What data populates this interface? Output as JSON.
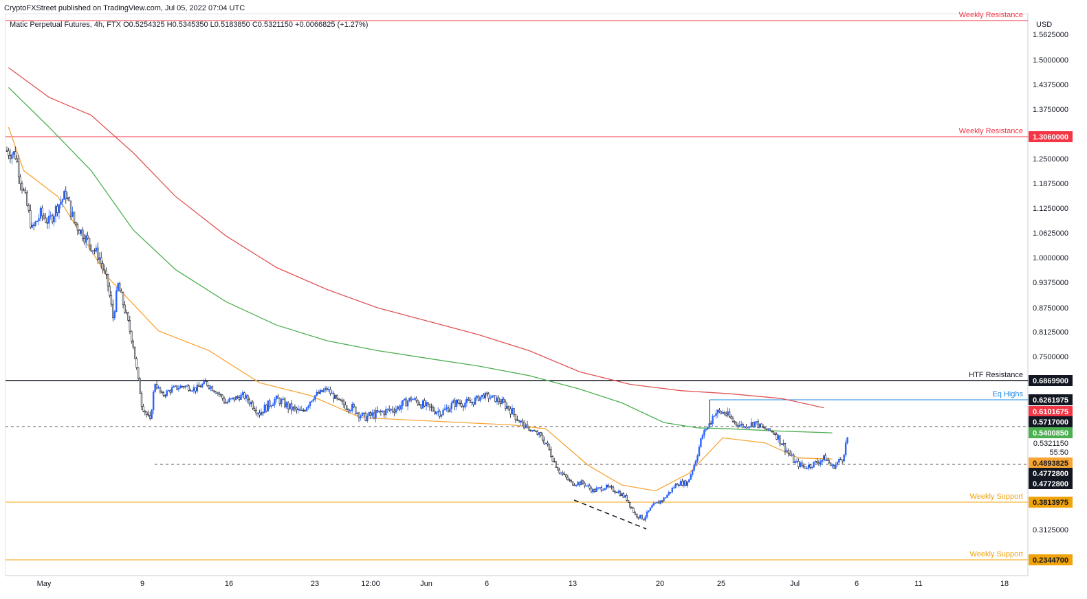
{
  "header": {
    "published": "CryptoFXStreet published on TradingView.com, Jul 05, 2022 07:04 UTC",
    "ohlc": "Matic Perpetual Futures, 4h, FTX  O0.5254325  H0.5345350  L0.5183850  C0.5321150  +0.0066825 (+1.27%)"
  },
  "colors": {
    "up": "#2962ff",
    "ema_fast": "#f7a534",
    "ema_mid": "#4caf50",
    "ema_slow": "#e15353",
    "resistance": "#f23645",
    "support": "#f0a30a",
    "htf": "#131722",
    "eq": "#1e88e5"
  },
  "chart_data": {
    "type": "candlestick",
    "currency": "USD",
    "y_ticks": [
      "1.5625000",
      "1.5000000",
      "1.4375000",
      "1.3750000",
      "1.2500000",
      "1.1875000",
      "1.1250000",
      "1.0625000",
      "1.0000000",
      "0.9375000",
      "0.8750000",
      "0.8125000",
      "0.7500000",
      "0.3125000"
    ],
    "x_ticks": [
      "May",
      "9",
      "16",
      "23",
      "12:00",
      "Jun",
      "6",
      "13",
      "20",
      "25",
      "Jul",
      "6",
      "11",
      "18"
    ],
    "levels": [
      {
        "label": "Weekly Resistance",
        "value": 1.58,
        "tag": ""
      },
      {
        "label": "Weekly Resistance",
        "value": 1.306,
        "tag": "1.3060000"
      },
      {
        "label": "HTF Resistance",
        "value": 0.68699,
        "tag": "0.6869900"
      },
      {
        "label": "Eq Highs",
        "value": 0.6261975,
        "tag": "0.6261975"
      },
      {
        "label": "Weekly Support",
        "value": 0.3813975,
        "tag": "0.3813975"
      },
      {
        "label": "Weekly Support",
        "value": 0.23447,
        "tag": "0.2344700"
      }
    ],
    "price_tags": [
      {
        "value": "0.6101675",
        "kind": "ema_slow"
      },
      {
        "value": "0.5717000",
        "kind": "dark"
      },
      {
        "value": "0.5400850",
        "kind": "ema_mid"
      },
      {
        "value": "0.5321150",
        "kind": "plain"
      },
      {
        "value": "55:50",
        "kind": "plain"
      },
      {
        "value": "0.4893825",
        "kind": "ema_fast"
      },
      {
        "value": "0.4772800",
        "kind": "dark"
      },
      {
        "value": "0.4772800",
        "kind": "dark"
      }
    ],
    "dashed_levels": [
      0.5717,
      0.4772
    ],
    "series": [
      {
        "name": "EMA fast",
        "points": [
          [
            1,
            1.33
          ],
          [
            10,
            1.22
          ],
          [
            30,
            1.155
          ],
          [
            60,
            0.95
          ],
          [
            90,
            0.815
          ],
          [
            120,
            0.765
          ],
          [
            150,
            0.68
          ],
          [
            180,
            0.64
          ],
          [
            210,
            0.59
          ],
          [
            240,
            0.585
          ],
          [
            270,
            0.58
          ],
          [
            300,
            0.575
          ],
          [
            320,
            0.56
          ],
          [
            345,
            0.475
          ],
          [
            365,
            0.425
          ],
          [
            385,
            0.41
          ],
          [
            405,
            0.455
          ],
          [
            425,
            0.53
          ],
          [
            450,
            0.52
          ],
          [
            470,
            0.49
          ],
          [
            490,
            0.488
          ]
        ]
      },
      {
        "name": "EMA mid",
        "points": [
          [
            1,
            1.43
          ],
          [
            25,
            1.33
          ],
          [
            50,
            1.22
          ],
          [
            75,
            1.07
          ],
          [
            100,
            0.97
          ],
          [
            130,
            0.89
          ],
          [
            160,
            0.83
          ],
          [
            190,
            0.79
          ],
          [
            220,
            0.765
          ],
          [
            250,
            0.745
          ],
          [
            280,
            0.725
          ],
          [
            310,
            0.7
          ],
          [
            340,
            0.66
          ],
          [
            365,
            0.62
          ],
          [
            390,
            0.58
          ],
          [
            410,
            0.565
          ],
          [
            430,
            0.56
          ],
          [
            455,
            0.55
          ],
          [
            490,
            0.54
          ]
        ]
      },
      {
        "name": "EMA slow",
        "points": [
          [
            1,
            1.48
          ],
          [
            25,
            1.405
          ],
          [
            50,
            1.36
          ],
          [
            75,
            1.265
          ],
          [
            100,
            1.155
          ],
          [
            130,
            1.055
          ],
          [
            160,
            0.975
          ],
          [
            190,
            0.92
          ],
          [
            220,
            0.875
          ],
          [
            250,
            0.84
          ],
          [
            280,
            0.805
          ],
          [
            310,
            0.765
          ],
          [
            340,
            0.71
          ],
          [
            370,
            0.675
          ],
          [
            400,
            0.655
          ],
          [
            430,
            0.645
          ],
          [
            460,
            0.63
          ],
          [
            485,
            0.61
          ]
        ]
      }
    ],
    "candle_path": [
      [
        0,
        1.27
      ],
      [
        5,
        1.26
      ],
      [
        8,
        1.2
      ],
      [
        12,
        1.13
      ],
      [
        15,
        1.07
      ],
      [
        20,
        1.11
      ],
      [
        25,
        1.09
      ],
      [
        30,
        1.13
      ],
      [
        35,
        1.16
      ],
      [
        40,
        1.09
      ],
      [
        45,
        1.06
      ],
      [
        50,
        1.03
      ],
      [
        55,
        1.0
      ],
      [
        60,
        0.93
      ],
      [
        63,
        0.85
      ],
      [
        66,
        0.93
      ],
      [
        70,
        0.87
      ],
      [
        75,
        0.78
      ],
      [
        80,
        0.62
      ],
      [
        85,
        0.58
      ],
      [
        88,
        0.68
      ],
      [
        92,
        0.64
      ],
      [
        98,
        0.66
      ],
      [
        105,
        0.67
      ],
      [
        112,
        0.66
      ],
      [
        118,
        0.68
      ],
      [
        125,
        0.65
      ],
      [
        130,
        0.62
      ],
      [
        140,
        0.64
      ],
      [
        150,
        0.6
      ],
      [
        160,
        0.63
      ],
      [
        168,
        0.61
      ],
      [
        175,
        0.6
      ],
      [
        183,
        0.64
      ],
      [
        190,
        0.66
      ],
      [
        197,
        0.62
      ],
      [
        205,
        0.61
      ],
      [
        212,
        0.59
      ],
      [
        222,
        0.6
      ],
      [
        232,
        0.61
      ],
      [
        240,
        0.63
      ],
      [
        250,
        0.61
      ],
      [
        258,
        0.6
      ],
      [
        266,
        0.62
      ],
      [
        275,
        0.62
      ],
      [
        283,
        0.64
      ],
      [
        290,
        0.63
      ],
      [
        298,
        0.61
      ],
      [
        305,
        0.58
      ],
      [
        312,
        0.55
      ],
      [
        320,
        0.52
      ],
      [
        328,
        0.46
      ],
      [
        335,
        0.43
      ],
      [
        342,
        0.43
      ],
      [
        348,
        0.41
      ],
      [
        355,
        0.42
      ],
      [
        362,
        0.41
      ],
      [
        368,
        0.39
      ],
      [
        373,
        0.35
      ],
      [
        378,
        0.34
      ],
      [
        383,
        0.37
      ],
      [
        390,
        0.39
      ],
      [
        398,
        0.43
      ],
      [
        404,
        0.43
      ],
      [
        410,
        0.5
      ],
      [
        415,
        0.56
      ],
      [
        420,
        0.6
      ],
      [
        426,
        0.6
      ],
      [
        432,
        0.58
      ],
      [
        438,
        0.57
      ],
      [
        444,
        0.58
      ],
      [
        450,
        0.56
      ],
      [
        456,
        0.54
      ],
      [
        462,
        0.51
      ],
      [
        468,
        0.48
      ],
      [
        474,
        0.47
      ],
      [
        480,
        0.48
      ],
      [
        486,
        0.49
      ],
      [
        490,
        0.47
      ],
      [
        496,
        0.49
      ],
      [
        499,
        0.53
      ]
    ]
  }
}
